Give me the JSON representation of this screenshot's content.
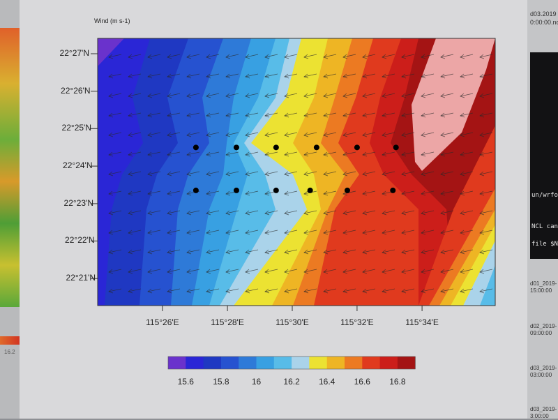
{
  "background": {
    "left_window": {
      "colorbar_label": "16.2"
    },
    "top_right_file": [
      "d03.2019",
      "0:00:00.nc"
    ],
    "terminal_lines": [
      "un/wrfou",
      "NCL can n",
      "file $NC"
    ],
    "file_labels": [
      [
        "d01_2019-",
        "15:00:00"
      ],
      [
        "d02_2019-",
        "09:00:00"
      ],
      [
        "d03_2019-",
        "03:00:00"
      ],
      [
        "d03_2019-",
        "3:00:00"
      ]
    ]
  },
  "chart_data": {
    "type": "contour",
    "title": "Wind   (m s-1)",
    "x_ticks": [
      {
        "label": "115°26'E",
        "value": 115.4333
      },
      {
        "label": "115°28'E",
        "value": 115.4667
      },
      {
        "label": "115°30'E",
        "value": 115.5
      },
      {
        "label": "115°32'E",
        "value": 115.5333
      },
      {
        "label": "115°34'E",
        "value": 115.5667
      }
    ],
    "y_ticks": [
      {
        "label": "22°27'N",
        "value": 22.45
      },
      {
        "label": "22°26'N",
        "value": 22.4333
      },
      {
        "label": "22°25'N",
        "value": 22.4167
      },
      {
        "label": "22°24'N",
        "value": 22.4
      },
      {
        "label": "22°23'N",
        "value": 22.3833
      },
      {
        "label": "22°22'N",
        "value": 22.3667
      },
      {
        "label": "22°21'N",
        "value": 22.35
      }
    ],
    "colorbar": {
      "levels": [
        15.6,
        15.7,
        15.8,
        15.9,
        16.0,
        16.1,
        16.2,
        16.3,
        16.4,
        16.5,
        16.6,
        16.7,
        16.8
      ],
      "labels": [
        "15.6",
        "15.8",
        "16",
        "16.2",
        "16.4",
        "16.6",
        "16.8"
      ],
      "colors": [
        "#6a32cc",
        "#2a26d6",
        "#1f38c2",
        "#2652d0",
        "#2e7ad8",
        "#38a0e2",
        "#58bce8",
        "#aad3ea",
        "#ece232",
        "#eeb524",
        "#ec7a22",
        "#e03a1e",
        "#cc1e1a",
        "#a41414",
        "#eca6a6"
      ]
    },
    "trend": "wind speed increases from west (~15.6) to east (~16.8), maximum in north-east",
    "vectors": {
      "direction": "WSW",
      "style": "uniform arrows"
    },
    "points": [
      {
        "lon": 115.4505,
        "lat": 22.4083
      },
      {
        "lon": 115.4713,
        "lat": 22.4083
      },
      {
        "lon": 115.4917,
        "lat": 22.4083
      },
      {
        "lon": 115.5125,
        "lat": 22.4083
      },
      {
        "lon": 115.5333,
        "lat": 22.4083
      },
      {
        "lon": 115.5533,
        "lat": 22.4083
      },
      {
        "lon": 115.4505,
        "lat": 22.3892
      },
      {
        "lon": 115.4713,
        "lat": 22.3892
      },
      {
        "lon": 115.4917,
        "lat": 22.3892
      },
      {
        "lon": 115.5092,
        "lat": 22.3892
      },
      {
        "lon": 115.5283,
        "lat": 22.3892
      },
      {
        "lon": 115.5517,
        "lat": 22.3892
      }
    ],
    "point_color": "#000000"
  }
}
